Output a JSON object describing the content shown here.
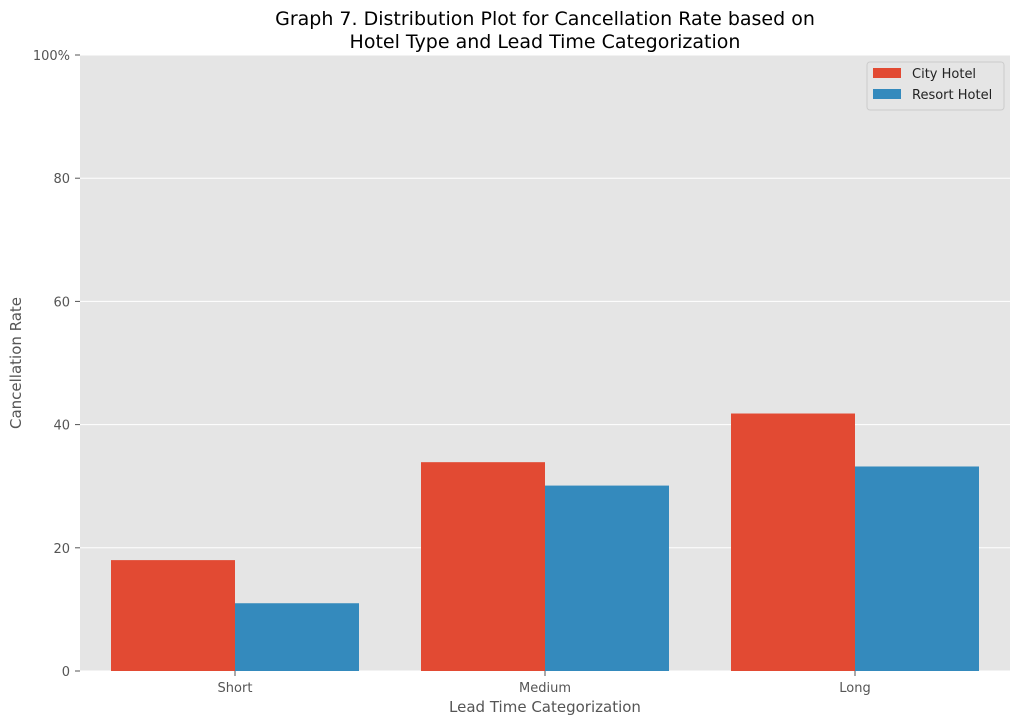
{
  "chart_data": {
    "type": "bar",
    "title_line1": "Graph 7. Distribution Plot for Cancellation Rate based on",
    "title_line2": "Hotel Type and Lead Time Categorization",
    "xlabel": "Lead Time Categorization",
    "ylabel": "Cancellation Rate",
    "categories": [
      "Short",
      "Medium",
      "Long"
    ],
    "series": [
      {
        "name": "City Hotel",
        "color": "#E24A33",
        "values": [
          18.0,
          33.9,
          41.8
        ]
      },
      {
        "name": "Resort Hotel",
        "color": "#348ABD",
        "values": [
          11.0,
          30.1,
          33.2
        ]
      }
    ],
    "ylim": [
      0,
      100
    ],
    "yticks": [
      {
        "value": 0,
        "label": "0"
      },
      {
        "value": 20,
        "label": "20"
      },
      {
        "value": 40,
        "label": "40"
      },
      {
        "value": 60,
        "label": "60"
      },
      {
        "value": 80,
        "label": "80"
      },
      {
        "value": 100,
        "label": "100%"
      }
    ],
    "grid": true,
    "legend_position": "top-right",
    "background_color": "#E5E5E5",
    "grid_color": "#FFFFFF"
  }
}
